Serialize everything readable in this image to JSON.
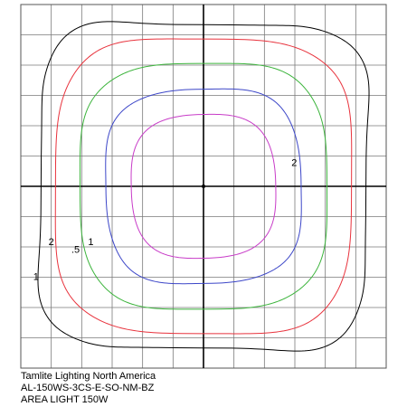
{
  "chart_data": {
    "type": "line",
    "title": "",
    "xlabel": "",
    "ylabel": "",
    "grid": true,
    "xlim": [
      -3,
      3
    ],
    "ylim": [
      -3,
      3
    ],
    "grid_step": 0.5,
    "series": [
      {
        "label": "1",
        "color": "#000000",
        "radius": 2.75,
        "squareness": 4.6,
        "lobe": 0.03
      },
      {
        "label": "2",
        "color": "#e8323c",
        "radius": 2.4,
        "squareness": 4.2,
        "lobe": 0.0
      },
      {
        "label": ".5",
        "color": "#3cb43c",
        "radius": 2.0,
        "squareness": 3.8,
        "lobe": 0.0
      },
      {
        "label": "1",
        "color": "#3c46c8",
        "radius": 1.6,
        "squareness": 3.2,
        "lobe": 0.0
      },
      {
        "label": "2",
        "color": "#c83cc8",
        "radius": 1.2,
        "squareness": 2.6,
        "lobe": 0.0
      }
    ],
    "contour_labels": [
      {
        "text": "2",
        "series": 4,
        "x": 1.49,
        "y": 0.38
      },
      {
        "text": "2",
        "series": 1,
        "x": -2.5,
        "y": -0.93
      },
      {
        "text": ".5",
        "series": 2,
        "x": -2.1,
        "y": -1.05
      },
      {
        "text": "1",
        "series": 3,
        "x": -1.85,
        "y": -0.93
      },
      {
        "text": "1",
        "series": 0,
        "x": -2.75,
        "y": -1.5
      }
    ]
  },
  "caption": {
    "company": "Tamlite Lighting North America",
    "model": "AL-150WS-3CS-E-SO-NM-BZ",
    "product": "AREA LIGHT 150W"
  }
}
